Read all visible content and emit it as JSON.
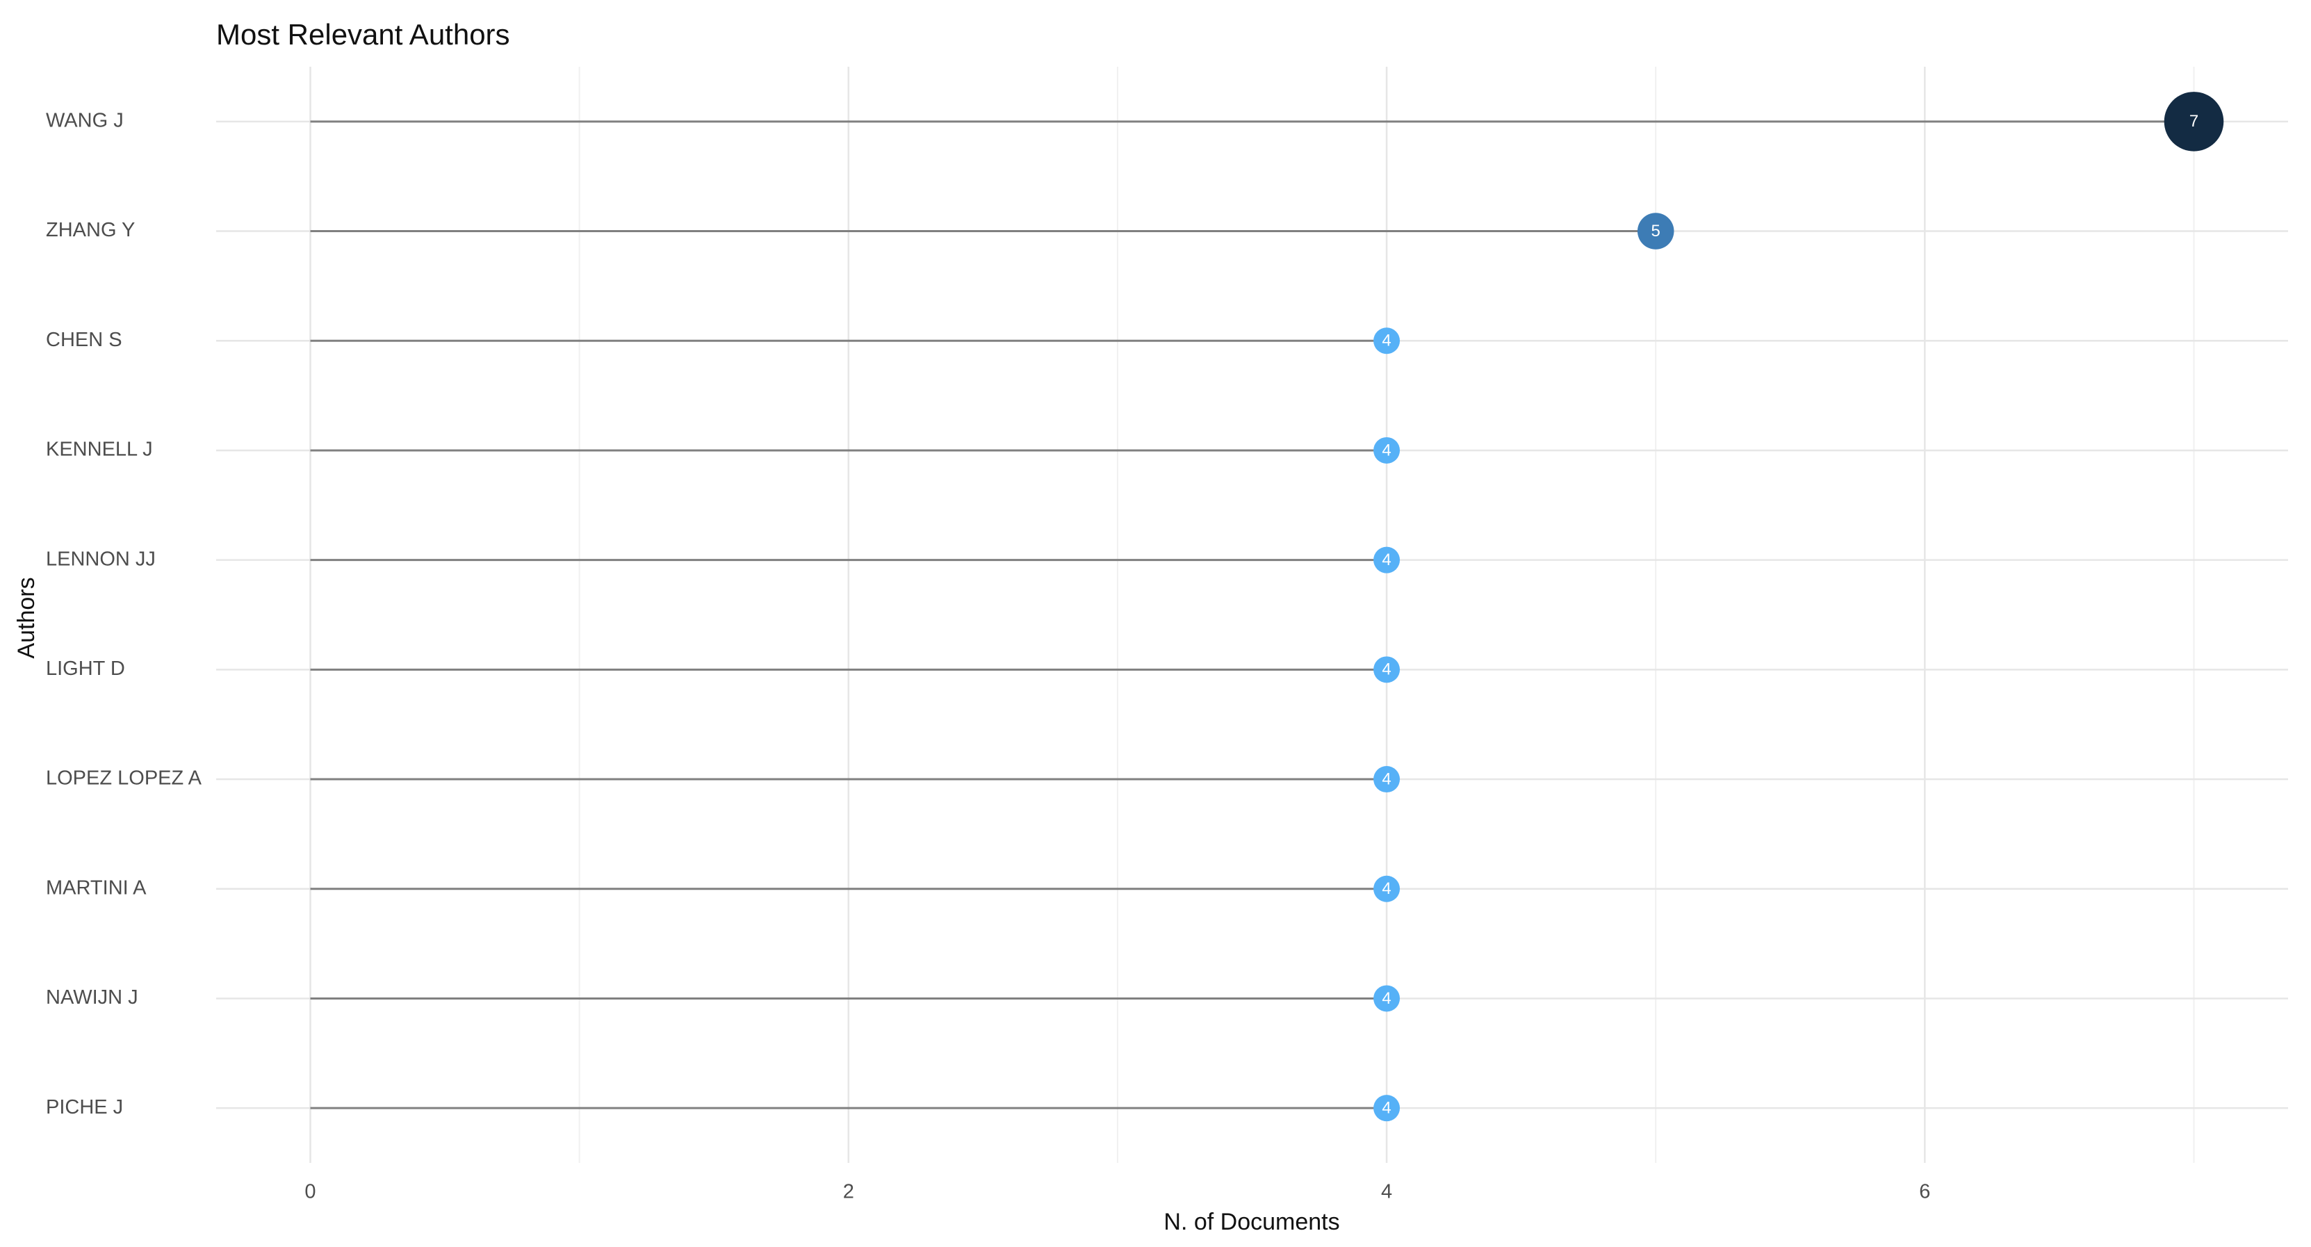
{
  "chart_data": {
    "type": "lollipop",
    "orientation": "horizontal",
    "title": "Most Relevant Authors",
    "x_label": "N. of Documents",
    "y_label": "Authors",
    "categories": [
      "WANG J",
      "ZHANG Y",
      "CHEN S",
      "KENNELL J",
      "LENNON JJ",
      "LIGHT D",
      "LOPEZ LOPEZ A",
      "MARTINI A",
      "NAWIJN J",
      "PICHE J"
    ],
    "values": [
      7,
      5,
      4,
      4,
      4,
      4,
      4,
      4,
      4,
      4
    ],
    "colors": [
      "#132b43",
      "#3d7cb5",
      "#56b1f7",
      "#56b1f7",
      "#56b1f7",
      "#56b1f7",
      "#56b1f7",
      "#56b1f7",
      "#56b1f7",
      "#56b1f7"
    ],
    "stem_color": "#808080",
    "xlim": [
      -0.35,
      7.35
    ],
    "xticks": [
      0,
      2,
      4,
      6
    ],
    "grid": true
  }
}
